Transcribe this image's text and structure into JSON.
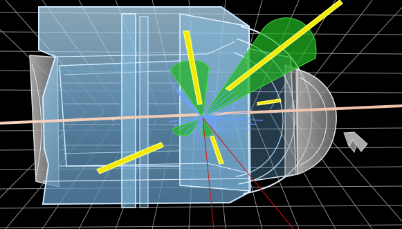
{
  "scene": {
    "description_kind": "particle-collision-event-display",
    "colors": {
      "background": "#000000",
      "grid": "#d8d8d8",
      "detector_fill": "#8fc8ec",
      "detector_edge": "#cde9ff",
      "endcap_fill": "#9a9a9a",
      "beam_line": "#f1c7b0",
      "jet_cone": "#20b020",
      "track_yellow": "#f2ea00",
      "track_blue": "#6aa3ff",
      "track_red": "#d01818",
      "top_border": "#9fe6c9"
    },
    "icons": [
      "axis-orientation-icon"
    ]
  }
}
